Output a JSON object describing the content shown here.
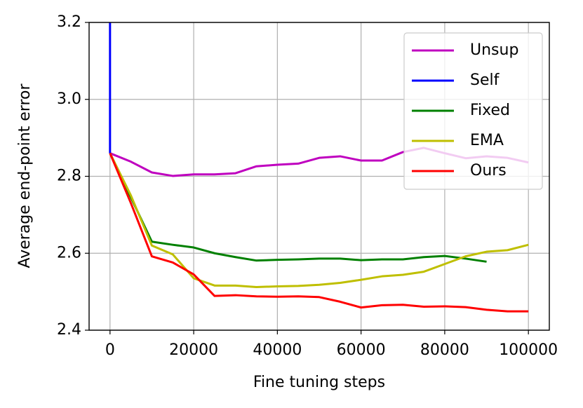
{
  "chart_data": {
    "type": "line",
    "xlabel": "Fine tuning steps",
    "ylabel": "Average end-point error",
    "x": [
      0,
      5000,
      10000,
      15000,
      20000,
      25000,
      30000,
      35000,
      40000,
      45000,
      50000,
      55000,
      60000,
      65000,
      70000,
      75000,
      80000,
      85000,
      90000,
      95000,
      100000
    ],
    "series": [
      {
        "name": "Unsup",
        "color": "#bf00bf",
        "values": [
          2.86,
          2.838,
          2.81,
          2.801,
          2.805,
          2.805,
          2.808,
          2.826,
          2.83,
          2.833,
          2.848,
          2.852,
          2.841,
          2.841,
          2.863,
          2.874,
          2.86,
          2.847,
          2.852,
          2.848,
          2.836
        ]
      },
      {
        "name": "Self",
        "color": "#0000ff",
        "x": [
          0,
          0
        ],
        "values": [
          2.86,
          3.2
        ]
      },
      {
        "name": "Fixed",
        "color": "#008000",
        "values": [
          2.86,
          2.745,
          2.63,
          2.622,
          2.615,
          2.6,
          2.59,
          2.581,
          2.583,
          2.584,
          2.586,
          2.586,
          2.582,
          2.584,
          2.584,
          2.59,
          2.593,
          2.586,
          2.578,
          null,
          null
        ]
      },
      {
        "name": "EMA",
        "color": "#bfbf00",
        "values": [
          2.86,
          2.75,
          2.62,
          2.597,
          2.535,
          2.516,
          2.516,
          2.512,
          2.514,
          2.515,
          2.518,
          2.523,
          2.531,
          2.54,
          2.544,
          2.552,
          2.572,
          2.592,
          2.604,
          2.608,
          2.622
        ]
      },
      {
        "name": "Ours",
        "color": "#ff0000",
        "values": [
          2.86,
          2.73,
          2.592,
          2.576,
          2.545,
          2.489,
          2.491,
          2.488,
          2.487,
          2.488,
          2.486,
          2.474,
          2.459,
          2.465,
          2.466,
          2.461,
          2.462,
          2.46,
          2.453,
          2.449,
          2.449
        ]
      }
    ],
    "xlim": [
      -5000,
      105000
    ],
    "ylim": [
      2.4,
      3.2
    ],
    "xticks": [
      0,
      20000,
      40000,
      60000,
      80000,
      100000
    ],
    "yticks": [
      2.4,
      2.6,
      2.8,
      {
        "value": 3,
        "label": "3.0"
      },
      3.2
    ],
    "grid": true,
    "legend": "upper right"
  }
}
